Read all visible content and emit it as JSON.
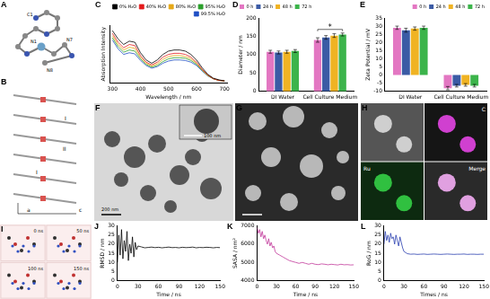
{
  "chart_data": [
    {
      "panel": "C",
      "type": "line",
      "x_label": "Wavelength / nm",
      "y_label": "Absorption Intensity",
      "x": [
        300,
        320,
        340,
        360,
        380,
        400,
        420,
        440,
        460,
        480,
        500,
        520,
        540,
        560,
        580,
        600,
        620,
        640,
        660,
        680,
        700
      ],
      "series": [
        {
          "name": "0% H₂O",
          "color": "#000000",
          "values": [
            0.95,
            0.8,
            0.7,
            0.76,
            0.74,
            0.55,
            0.42,
            0.36,
            0.42,
            0.52,
            0.58,
            0.6,
            0.6,
            0.58,
            0.52,
            0.42,
            0.28,
            0.16,
            0.09,
            0.06,
            0.04
          ]
        },
        {
          "name": "40% H₂O",
          "color": "#e41a1c",
          "values": [
            0.9,
            0.74,
            0.64,
            0.7,
            0.68,
            0.5,
            0.38,
            0.33,
            0.38,
            0.47,
            0.52,
            0.54,
            0.54,
            0.52,
            0.47,
            0.38,
            0.25,
            0.15,
            0.08,
            0.05,
            0.04
          ]
        },
        {
          "name": "80% H₂O",
          "color": "#e6a817",
          "values": [
            0.86,
            0.7,
            0.6,
            0.65,
            0.63,
            0.47,
            0.36,
            0.31,
            0.35,
            0.43,
            0.48,
            0.5,
            0.5,
            0.48,
            0.44,
            0.36,
            0.24,
            0.14,
            0.08,
            0.05,
            0.04
          ]
        },
        {
          "name": "95% H₂O",
          "color": "#2ca02c",
          "values": [
            0.82,
            0.66,
            0.56,
            0.6,
            0.58,
            0.44,
            0.34,
            0.29,
            0.32,
            0.39,
            0.44,
            0.46,
            0.46,
            0.45,
            0.41,
            0.34,
            0.23,
            0.14,
            0.08,
            0.05,
            0.04
          ]
        },
        {
          "name": "99.5% H₂O",
          "color": "#1f4fc4",
          "values": [
            0.78,
            0.62,
            0.52,
            0.55,
            0.53,
            0.41,
            0.32,
            0.27,
            0.3,
            0.36,
            0.4,
            0.42,
            0.42,
            0.41,
            0.38,
            0.32,
            0.22,
            0.13,
            0.08,
            0.05,
            0.04
          ]
        }
      ],
      "xlim": [
        290,
        710
      ],
      "xticks": [
        300,
        400,
        500,
        600,
        700
      ],
      "ylim": [
        0,
        1.05
      ],
      "tick_labels": "x",
      "legend": "upper right",
      "grid": false
    },
    {
      "panel": "D",
      "type": "bar",
      "y_label": "Diameter / nm",
      "categories": [
        "DI Water",
        "Cell Culture Medium"
      ],
      "series": [
        {
          "name": "0 h",
          "color": "#e377c2",
          "values": [
            108,
            140
          ],
          "errors": [
            4,
            6
          ]
        },
        {
          "name": "24 h",
          "color": "#3b5ba5",
          "values": [
            106,
            147
          ],
          "errors": [
            4,
            5
          ]
        },
        {
          "name": "48 h",
          "color": "#f0b323",
          "values": [
            108,
            152
          ],
          "errors": [
            4,
            5
          ]
        },
        {
          "name": "72 h",
          "color": "#3cb44b",
          "values": [
            110,
            155
          ],
          "errors": [
            4,
            4
          ]
        }
      ],
      "annotation": "*",
      "ylim": [
        0,
        200
      ],
      "yticks": [
        0,
        50,
        100,
        150,
        200
      ],
      "legend": "upper left",
      "grid": false
    },
    {
      "panel": "E",
      "type": "bar",
      "y_label": "Zeta Potential / mV",
      "categories": [
        "DI Water",
        "Cell Culture Medium"
      ],
      "series": [
        {
          "name": "0 h",
          "color": "#e377c2",
          "values": [
            29,
            -8
          ],
          "errors": [
            1,
            1
          ]
        },
        {
          "name": "24 h",
          "color": "#3b5ba5",
          "values": [
            27.5,
            -6.5
          ],
          "errors": [
            1.2,
            0.8
          ]
        },
        {
          "name": "48 h",
          "color": "#f0b323",
          "values": [
            28.5,
            -6
          ],
          "errors": [
            1,
            0.8
          ]
        },
        {
          "name": "72 h",
          "color": "#3cb44b",
          "values": [
            29,
            -6.5
          ],
          "errors": [
            1,
            0.8
          ]
        }
      ],
      "ylim": [
        -10,
        35
      ],
      "yticks": [
        -10,
        -5,
        0,
        5,
        10,
        15,
        20,
        25,
        30,
        35
      ],
      "legend": "upper right",
      "grid": false
    },
    {
      "panel": "J",
      "type": "line",
      "x_label": "Time / ns",
      "y_label": "RMSD / nm",
      "x": [
        0,
        2,
        4,
        6,
        8,
        10,
        12,
        14,
        16,
        18,
        20,
        22,
        24,
        26,
        28,
        30,
        35,
        40,
        45,
        50,
        55,
        60,
        65,
        70,
        75,
        80,
        85,
        90,
        95,
        100,
        105,
        110,
        115,
        120,
        125,
        130,
        135,
        140,
        145,
        150
      ],
      "series": [
        {
          "name": "RMSD",
          "color": "#000000",
          "values": [
            10,
            25,
            14,
            28,
            12,
            22,
            16,
            27,
            11,
            20,
            15,
            24,
            13,
            21,
            17,
            19,
            18.5,
            18,
            18.2,
            18.4,
            18.1,
            18.3,
            18,
            18.2,
            18.4,
            18.1,
            18.2,
            18,
            18.3,
            18.1,
            18.2,
            18.4,
            18,
            18.2,
            18.1,
            18.3,
            18.2,
            18,
            18.2,
            18.1
          ]
        }
      ],
      "xlim": [
        0,
        150
      ],
      "xticks": [
        0,
        30,
        60,
        90,
        120,
        150
      ],
      "ylim": [
        0,
        30
      ],
      "yticks": [
        0,
        5,
        10,
        15,
        20,
        25,
        30
      ],
      "grid": false
    },
    {
      "panel": "K",
      "type": "line",
      "x_label": "Time / ns",
      "y_label": "SASA / nm²",
      "x": [
        0,
        2,
        4,
        6,
        8,
        10,
        12,
        14,
        16,
        18,
        20,
        22,
        24,
        26,
        28,
        30,
        35,
        40,
        45,
        50,
        55,
        60,
        65,
        70,
        75,
        80,
        85,
        90,
        95,
        100,
        105,
        110,
        115,
        120,
        125,
        130,
        135,
        140,
        145,
        150
      ],
      "series": [
        {
          "name": "SASA",
          "color": "#c2389a",
          "values": [
            6900,
            6600,
            6800,
            6400,
            6700,
            6300,
            6500,
            6200,
            6000,
            6300,
            5900,
            6100,
            5800,
            5900,
            5600,
            5500,
            5400,
            5300,
            5200,
            5100,
            5050,
            5000,
            4950,
            5000,
            4950,
            4900,
            4950,
            4900,
            4880,
            4920,
            4900,
            4870,
            4900,
            4880,
            4860,
            4900,
            4870,
            4880,
            4860,
            4870
          ]
        }
      ],
      "xlim": [
        0,
        150
      ],
      "xticks": [
        0,
        30,
        60,
        90,
        120,
        150
      ],
      "ylim": [
        4000,
        7000
      ],
      "yticks": [
        4000,
        5000,
        6000,
        7000
      ],
      "grid": false
    },
    {
      "panel": "L",
      "type": "line",
      "x_label": "Times / ns",
      "y_label": "RoG / nm",
      "x": [
        0,
        2,
        4,
        6,
        8,
        10,
        12,
        14,
        16,
        18,
        20,
        22,
        24,
        26,
        28,
        30,
        35,
        40,
        45,
        50,
        55,
        60,
        65,
        70,
        75,
        80,
        85,
        90,
        95,
        100,
        105,
        110,
        115,
        120,
        125,
        130,
        135,
        140,
        145,
        150
      ],
      "series": [
        {
          "name": "RoG",
          "color": "#2a3fb0",
          "values": [
            20,
            27,
            22,
            25,
            21,
            26,
            23,
            24,
            20,
            25,
            22,
            19,
            24,
            21,
            18,
            16,
            14.8,
            14.5,
            14.6,
            14.4,
            14.5,
            14.6,
            14.4,
            14.5,
            14.6,
            14.5,
            14.4,
            14.5,
            14.6,
            14.5,
            14.4,
            14.5,
            14.5,
            14.6,
            14.4,
            14.5,
            14.5,
            14.4,
            14.5,
            14.5
          ]
        }
      ],
      "xlim": [
        0,
        150
      ],
      "xticks": [
        0,
        30,
        60,
        90,
        120,
        150
      ],
      "ylim": [
        0,
        30
      ],
      "yticks": [
        0,
        5,
        10,
        15,
        20,
        25,
        30
      ],
      "grid": false
    }
  ],
  "images": [
    {
      "panel": "A",
      "labels": [
        "C1",
        "N1",
        "N7",
        "N8"
      ]
    },
    {
      "panel": "B",
      "labels": [
        "I",
        "II",
        "I",
        "a",
        "c"
      ]
    },
    {
      "panel": "F",
      "labels": [
        "100 nm",
        "200 nm"
      ]
    },
    {
      "panel": "G",
      "labels": []
    },
    {
      "panel": "H",
      "labels": [
        "C",
        "Ru",
        "Merge"
      ]
    },
    {
      "panel": "I",
      "labels": [
        "0 ns",
        "50 ns",
        "100 ns",
        "150 ns"
      ]
    }
  ]
}
